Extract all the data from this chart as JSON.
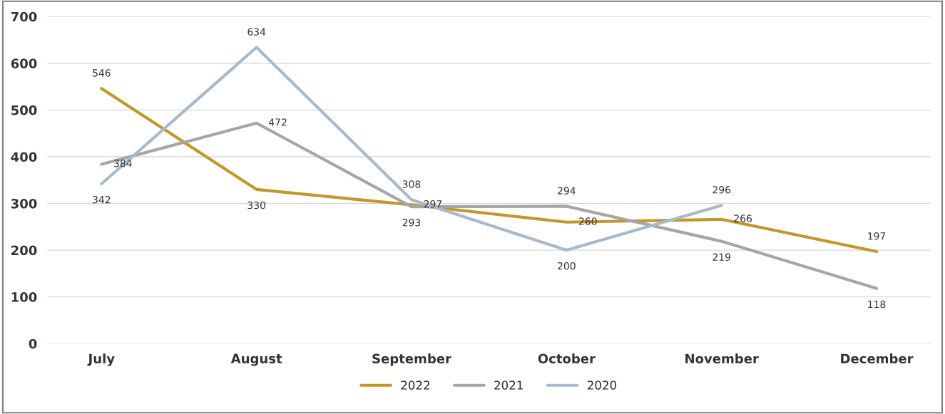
{
  "chart_data": {
    "type": "line",
    "categories": [
      "July",
      "August",
      "September",
      "October",
      "November",
      "December"
    ],
    "series": [
      {
        "name": "2022",
        "color": "#c0982c",
        "values": [
          546,
          330,
          297,
          260,
          266,
          197
        ]
      },
      {
        "name": "2021",
        "color": "#a6a6a6",
        "values": [
          384,
          472,
          293,
          294,
          219,
          118
        ]
      },
      {
        "name": "2020",
        "color": "#a9b9cc",
        "values": [
          342,
          634,
          308,
          200,
          296,
          null
        ]
      }
    ],
    "ylim": [
      0,
      700
    ],
    "yticks": [
      0,
      100,
      200,
      300,
      400,
      500,
      600,
      700
    ],
    "grid": "y",
    "legend": "bottom",
    "marker": "none",
    "line_style": "solid",
    "data_labels": true
  }
}
